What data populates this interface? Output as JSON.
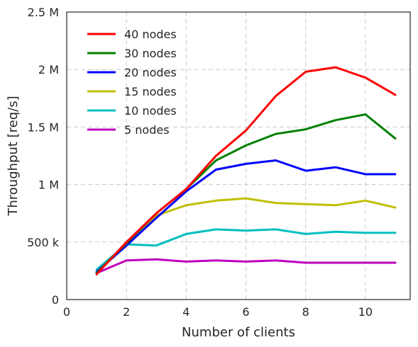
{
  "chart_data": {
    "type": "line",
    "title": "",
    "xlabel": "Number of clients",
    "ylabel": "Throughput [req/s]",
    "xlim": [
      0,
      11.5
    ],
    "ylim": [
      0,
      2500000
    ],
    "xticks": [
      0,
      2,
      4,
      6,
      8,
      10
    ],
    "xtick_labels": [
      "0",
      "2",
      "4",
      "6",
      "8",
      "10"
    ],
    "yticks": [
      0,
      500000,
      1000000,
      1500000,
      2000000,
      2500000
    ],
    "ytick_labels": [
      "0",
      "500 k",
      "1 M",
      "1.5 M",
      "2 M",
      "2.5 M"
    ],
    "grid": true,
    "legend_position": "upper-left",
    "x": [
      1,
      2,
      3,
      4,
      5,
      6,
      7,
      8,
      9,
      10,
      11
    ],
    "series": [
      {
        "name": "40 nodes",
        "color": "#ff0000",
        "values": [
          220000,
          500000,
          750000,
          960000,
          1250000,
          1470000,
          1770000,
          1980000,
          2020000,
          1930000,
          1780000
        ]
      },
      {
        "name": "30 nodes",
        "color": "#008000",
        "values": [
          230000,
          490000,
          750000,
          960000,
          1210000,
          1340000,
          1440000,
          1480000,
          1560000,
          1610000,
          1400000
        ]
      },
      {
        "name": "20 nodes",
        "color": "#0000ff",
        "values": [
          240000,
          470000,
          710000,
          940000,
          1130000,
          1180000,
          1210000,
          1120000,
          1150000,
          1090000,
          1090000
        ]
      },
      {
        "name": "15 nodes",
        "color": "#bfbf00",
        "values": [
          230000,
          480000,
          730000,
          820000,
          860000,
          880000,
          840000,
          830000,
          820000,
          860000,
          800000
        ]
      },
      {
        "name": "10 nodes",
        "color": "#00bfbf",
        "values": [
          260000,
          480000,
          470000,
          570000,
          610000,
          600000,
          610000,
          570000,
          590000,
          580000,
          580000
        ]
      },
      {
        "name": "5 nodes",
        "color": "#bf00bf",
        "values": [
          230000,
          340000,
          350000,
          330000,
          340000,
          330000,
          340000,
          320000,
          320000,
          320000,
          320000
        ]
      }
    ]
  }
}
